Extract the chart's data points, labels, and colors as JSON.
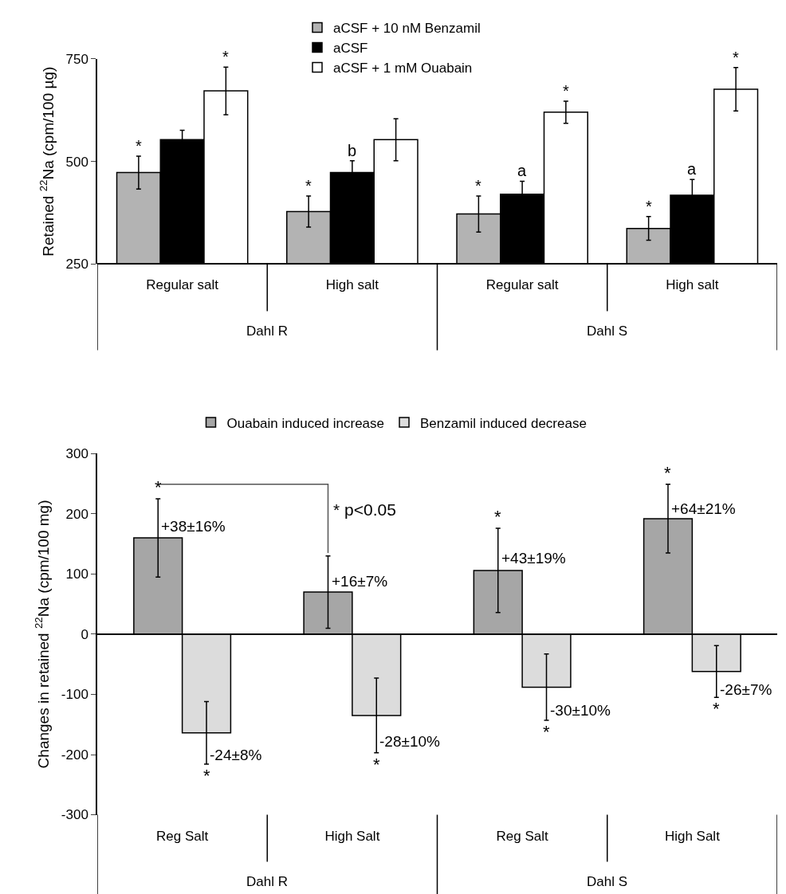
{
  "chart_data": [
    {
      "type": "bar",
      "ylabel": "Retained $^{22}$Na (cpm/100 µg)",
      "categories": [
        "Regular salt",
        "High salt",
        "Regular salt",
        "High salt"
      ],
      "ylim": [
        250,
        750
      ],
      "yticks": [
        250,
        500,
        750
      ],
      "grid": false,
      "legend": "top",
      "series": [
        {
          "name": "aCSF + 10 nM Benzamil",
          "color": "#b3b3b3",
          "values": [
            473,
            378,
            372,
            337
          ],
          "errors": [
            40,
            38,
            44,
            29
          ],
          "value_labels": [
            "*",
            "*",
            "*",
            "*"
          ]
        },
        {
          "name": "aCSF",
          "color": "#000000",
          "values": [
            553,
            473,
            420,
            418
          ],
          "errors": [
            23,
            29,
            32,
            38
          ],
          "value_labels": [
            null,
            "b",
            "a",
            "a"
          ]
        },
        {
          "name": "aCSF + 1 mM Ouabain",
          "color": "#ffffff",
          "values": [
            672,
            553,
            620,
            676
          ],
          "errors": [
            58,
            51,
            27,
            53
          ],
          "value_labels": [
            "*",
            null,
            "*",
            "*"
          ]
        }
      ],
      "annotations": [
        "Dahl R",
        "Dahl S"
      ]
    },
    {
      "type": "bar",
      "ylabel": "Changes in retained $^{22}$Na (cpm/100 mg)",
      "categories": [
        "Reg Salt",
        "High Salt",
        "Reg Salt",
        "High Salt"
      ],
      "ylim": [
        -300,
        300
      ],
      "yticks": [
        -300,
        -200,
        -100,
        0,
        100,
        200,
        300
      ],
      "legend": "top",
      "series": [
        {
          "name": "Ouabain induced increase",
          "color": "#a6a6a6",
          "values": [
            160,
            70,
            106,
            192
          ],
          "errors": [
            65,
            60,
            70,
            57
          ],
          "value_labels": [
            "*",
            null,
            "*",
            "*"
          ]
        },
        {
          "name": "Benzamil induced decrease",
          "color": "#dcdcdc",
          "values": [
            -164,
            -135,
            -88,
            -62
          ],
          "errors": [
            52,
            62,
            55,
            43
          ],
          "value_labels": [
            "*",
            "*",
            "*",
            "*"
          ]
        }
      ],
      "annotations": [
        "+38±16%",
        "+16±7%",
        "+43±19%",
        "+64±21%",
        "-24±8%",
        "-28±10%",
        "-30±10%",
        "-26±7%",
        "* p<0.05",
        "Dahl R",
        "Dahl S"
      ]
    }
  ]
}
